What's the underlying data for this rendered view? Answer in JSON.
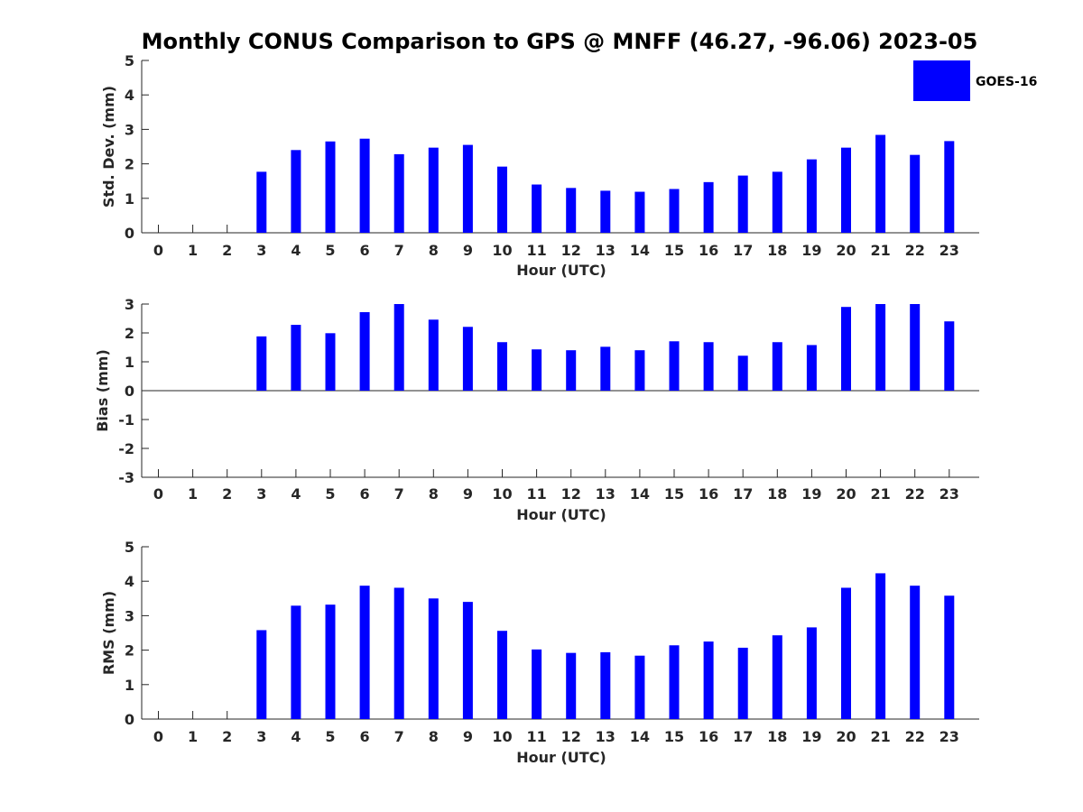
{
  "title": "Monthly CONUS Comparison to GPS @ MNFF (46.27, -96.06) 2023-05",
  "legend": {
    "label": "GOES-16",
    "color": "#0000ff"
  },
  "chart_data": [
    {
      "type": "bar",
      "title": "Monthly CONUS Comparison to GPS @ MNFF (46.27, -96.06) 2023-05",
      "xlabel": "Hour (UTC)",
      "ylabel": "Std. Dev. (mm)",
      "ylim": [
        0,
        5
      ],
      "yticks": [
        "0",
        "1",
        "2",
        "3",
        "4",
        "5"
      ],
      "categories": [
        "0",
        "1",
        "2",
        "3",
        "4",
        "5",
        "6",
        "7",
        "8",
        "9",
        "10",
        "11",
        "12",
        "13",
        "14",
        "15",
        "16",
        "17",
        "18",
        "19",
        "20",
        "21",
        "22",
        "23"
      ],
      "series": [
        {
          "name": "GOES-16",
          "color": "#0000ff",
          "values": [
            null,
            null,
            null,
            1.77,
            2.4,
            2.65,
            2.73,
            2.28,
            2.47,
            2.55,
            1.92,
            1.4,
            1.3,
            1.22,
            1.19,
            1.27,
            1.47,
            1.66,
            1.77,
            2.13,
            2.47,
            2.84,
            2.26,
            2.66
          ]
        }
      ]
    },
    {
      "type": "bar",
      "xlabel": "Hour (UTC)",
      "ylabel": "Bias (mm)",
      "ylim": [
        -3,
        3
      ],
      "yticks": [
        "-3",
        "-2",
        "-1",
        "0",
        "1",
        "2",
        "3"
      ],
      "categories": [
        "0",
        "1",
        "2",
        "3",
        "4",
        "5",
        "6",
        "7",
        "8",
        "9",
        "10",
        "11",
        "12",
        "13",
        "14",
        "15",
        "16",
        "17",
        "18",
        "19",
        "20",
        "21",
        "22",
        "23"
      ],
      "series": [
        {
          "name": "GOES-16",
          "color": "#0000ff",
          "values": [
            null,
            null,
            null,
            1.88,
            2.28,
            1.99,
            2.72,
            3.0,
            2.46,
            2.21,
            1.68,
            1.43,
            1.4,
            1.52,
            1.4,
            1.71,
            1.68,
            1.21,
            1.68,
            1.58,
            2.9,
            3.0,
            3.0,
            2.4
          ]
        }
      ]
    },
    {
      "type": "bar",
      "xlabel": "Hour (UTC)",
      "ylabel": "RMS (mm)",
      "ylim": [
        0,
        5
      ],
      "yticks": [
        "0",
        "1",
        "2",
        "3",
        "4",
        "5"
      ],
      "categories": [
        "0",
        "1",
        "2",
        "3",
        "4",
        "5",
        "6",
        "7",
        "8",
        "9",
        "10",
        "11",
        "12",
        "13",
        "14",
        "15",
        "16",
        "17",
        "18",
        "19",
        "20",
        "21",
        "22",
        "23"
      ],
      "series": [
        {
          "name": "GOES-16",
          "color": "#0000ff",
          "values": [
            null,
            null,
            null,
            2.58,
            3.29,
            3.32,
            3.87,
            3.81,
            3.5,
            3.4,
            2.56,
            2.02,
            1.92,
            1.94,
            1.84,
            2.14,
            2.25,
            2.07,
            2.43,
            2.66,
            3.81,
            4.23,
            3.87,
            3.58
          ]
        }
      ]
    }
  ]
}
